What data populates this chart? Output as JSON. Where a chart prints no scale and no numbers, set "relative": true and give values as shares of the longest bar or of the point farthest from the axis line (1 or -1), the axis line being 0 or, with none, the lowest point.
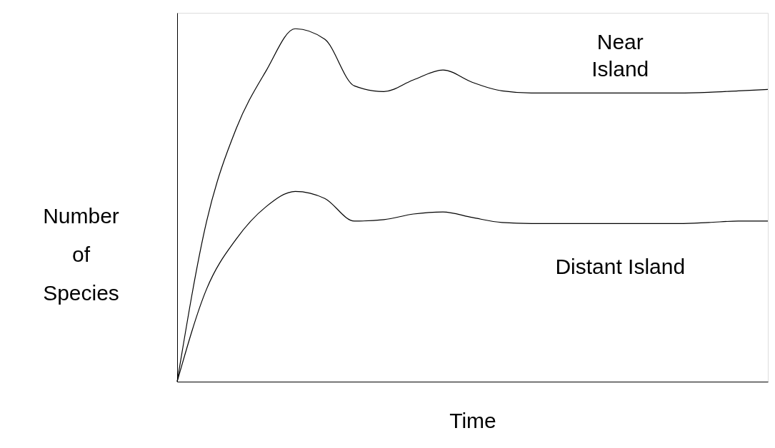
{
  "chart_data": {
    "type": "line",
    "relative": true,
    "xlabel": "Time",
    "ylabel": "Number of Species",
    "categories": [
      null,
      null,
      null,
      null,
      null,
      null,
      null,
      null,
      null,
      null,
      null,
      null,
      null,
      null,
      null,
      null,
      null,
      null,
      null,
      null,
      null
    ],
    "series": [
      {
        "name": "Near Island",
        "color": "#000000",
        "values": [
          0,
          0.455,
          0.717,
          0.879,
          1,
          0.97,
          0.838,
          0.822,
          0.855,
          0.883,
          0.848,
          0.824,
          0.818,
          0.818,
          0.818,
          0.818,
          0.818,
          0.818,
          0.82,
          0.824,
          0.828
        ]
      },
      {
        "name": "Distant Island",
        "color": "#000000",
        "values": [
          0,
          0.263,
          0.404,
          0.495,
          0.539,
          0.519,
          0.455,
          0.459,
          0.475,
          0.481,
          0.465,
          0.451,
          0.448,
          0.448,
          0.448,
          0.448,
          0.448,
          0.448,
          0.451,
          0.455,
          0.455
        ]
      }
    ]
  }
}
